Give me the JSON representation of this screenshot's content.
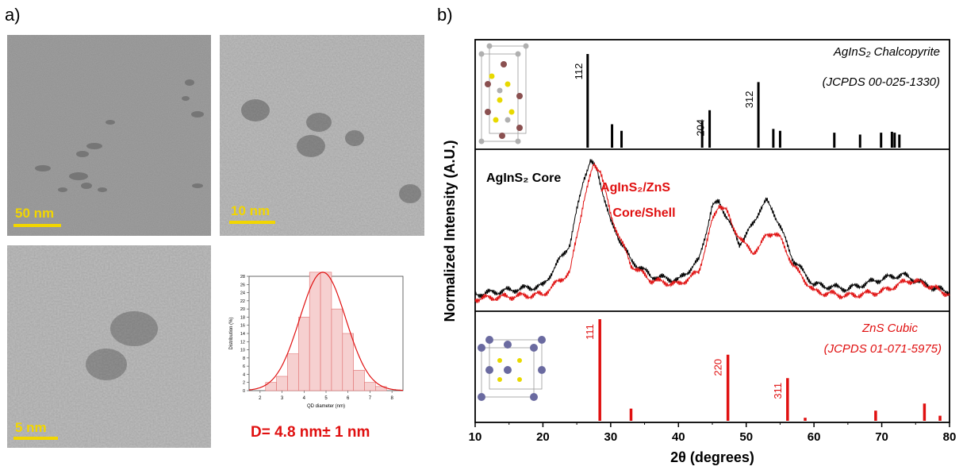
{
  "panel_a": {
    "label": "a)",
    "scale_bars": [
      "50 nm",
      "10 nm",
      "5 nm"
    ],
    "histogram": {
      "xlabel": "QD diameter (nm)",
      "ylabel": "Distribution (%)",
      "x_ticks": [
        "2",
        "3",
        "4",
        "5",
        "6",
        "7",
        "8"
      ],
      "y_ticks": [
        "0",
        "2",
        "4",
        "6",
        "8",
        "10",
        "12",
        "14",
        "16",
        "18",
        "20",
        "22",
        "24",
        "26",
        "28"
      ]
    },
    "size_text": "D= 4.8 nm± 1 nm"
  },
  "panel_b": {
    "label": "b)",
    "ylabel": "Normalized Intensity (A.U.)",
    "xlabel": "2θ (degrees)",
    "x_ticks": [
      "10",
      "20",
      "30",
      "40",
      "50",
      "60",
      "70",
      "80"
    ],
    "top_ref_title": "AgInS₂ Chalcopyrite",
    "top_ref_code": "(JCPDS 00-025-1330)",
    "core_label": "AgInS₂ Core",
    "shell_label_1": "AgInS₂/ZnS",
    "shell_label_2": "Core/Shell",
    "bottom_ref_title": "ZnS Cubic",
    "bottom_ref_code": "(JCPDS 01-071-5975)"
  },
  "colors": {
    "red": "#e01010",
    "black": "#000000",
    "yellow": "#f2d600",
    "hist_fill": "#f6d0d0"
  },
  "chart_data": [
    {
      "type": "bar",
      "title": "",
      "xlabel": "QD diameter (nm)",
      "ylabel": "Distribution (%)",
      "categories": [
        "2.5",
        "3.0",
        "3.5",
        "4.0",
        "4.5",
        "5.0",
        "5.5",
        "6.0",
        "6.5",
        "7.0",
        "7.5"
      ],
      "values": [
        2,
        3.5,
        9,
        18,
        29,
        29,
        20,
        14,
        5,
        2,
        1
      ],
      "fit": "gaussian",
      "xlim": [
        1.5,
        8.5
      ],
      "ylim": [
        0,
        28
      ]
    },
    {
      "type": "bar",
      "title": "AgInS2 Chalcopyrite (JCPDS 00-025-1330)",
      "x": [
        26.6,
        30.2,
        31.6,
        43.5,
        44.6,
        51.8,
        54.0,
        55.0,
        63.0,
        66.8,
        69.9,
        71.5,
        71.9,
        72.6
      ],
      "values": [
        100,
        25,
        18,
        28,
        40,
        70,
        20,
        18,
        16,
        14,
        16,
        17,
        16,
        14
      ],
      "labels": {
        "26.6": "112",
        "44.6": "204",
        "51.8": "312"
      },
      "xlim": [
        10,
        80
      ]
    },
    {
      "type": "line",
      "xlabel": "2θ (degrees)",
      "ylabel": "Normalized Intensity (A.U.)",
      "series": [
        {
          "name": "AgInS2 Core",
          "color": "#000000",
          "x": [
            10,
            20,
            24,
            26,
            27,
            28,
            30,
            33,
            36,
            40,
            43,
            45,
            46,
            47,
            49,
            50,
            51,
            52,
            53,
            54,
            55,
            57,
            60,
            65,
            70,
            73,
            75,
            78,
            80
          ],
          "y": [
            4,
            10,
            40,
            86,
            98,
            92,
            55,
            28,
            17,
            14,
            28,
            66,
            70,
            60,
            40,
            46,
            54,
            64,
            70,
            63,
            52,
            28,
            11,
            8,
            15,
            18,
            14,
            8,
            6
          ]
        },
        {
          "name": "AgInS2/ZnS Core/Shell",
          "color": "#e01010",
          "x": [
            10,
            20,
            24,
            26,
            27.5,
            28.5,
            30,
            33,
            36,
            40,
            43,
            45,
            46,
            47,
            48,
            50,
            51,
            52,
            53,
            54,
            55,
            57,
            60,
            65,
            70,
            74,
            76,
            78,
            80
          ],
          "y": [
            1,
            4,
            20,
            70,
            96,
            92,
            60,
            25,
            14,
            11,
            20,
            56,
            68,
            64,
            52,
            38,
            34,
            38,
            46,
            48,
            44,
            24,
            6,
            3,
            6,
            14,
            12,
            8,
            4
          ]
        }
      ],
      "xlim": [
        10,
        80
      ]
    },
    {
      "type": "bar",
      "title": "ZnS Cubic (JCPDS 01-071-5975)",
      "x": [
        28.4,
        33.0,
        47.3,
        56.1,
        58.7,
        69.1,
        76.3,
        78.6
      ],
      "values": [
        100,
        12,
        65,
        42,
        3,
        10,
        17,
        5
      ],
      "labels": {
        "28.4": "111",
        "47.3": "220",
        "56.1": "311"
      },
      "xlim": [
        10,
        80
      ]
    }
  ]
}
